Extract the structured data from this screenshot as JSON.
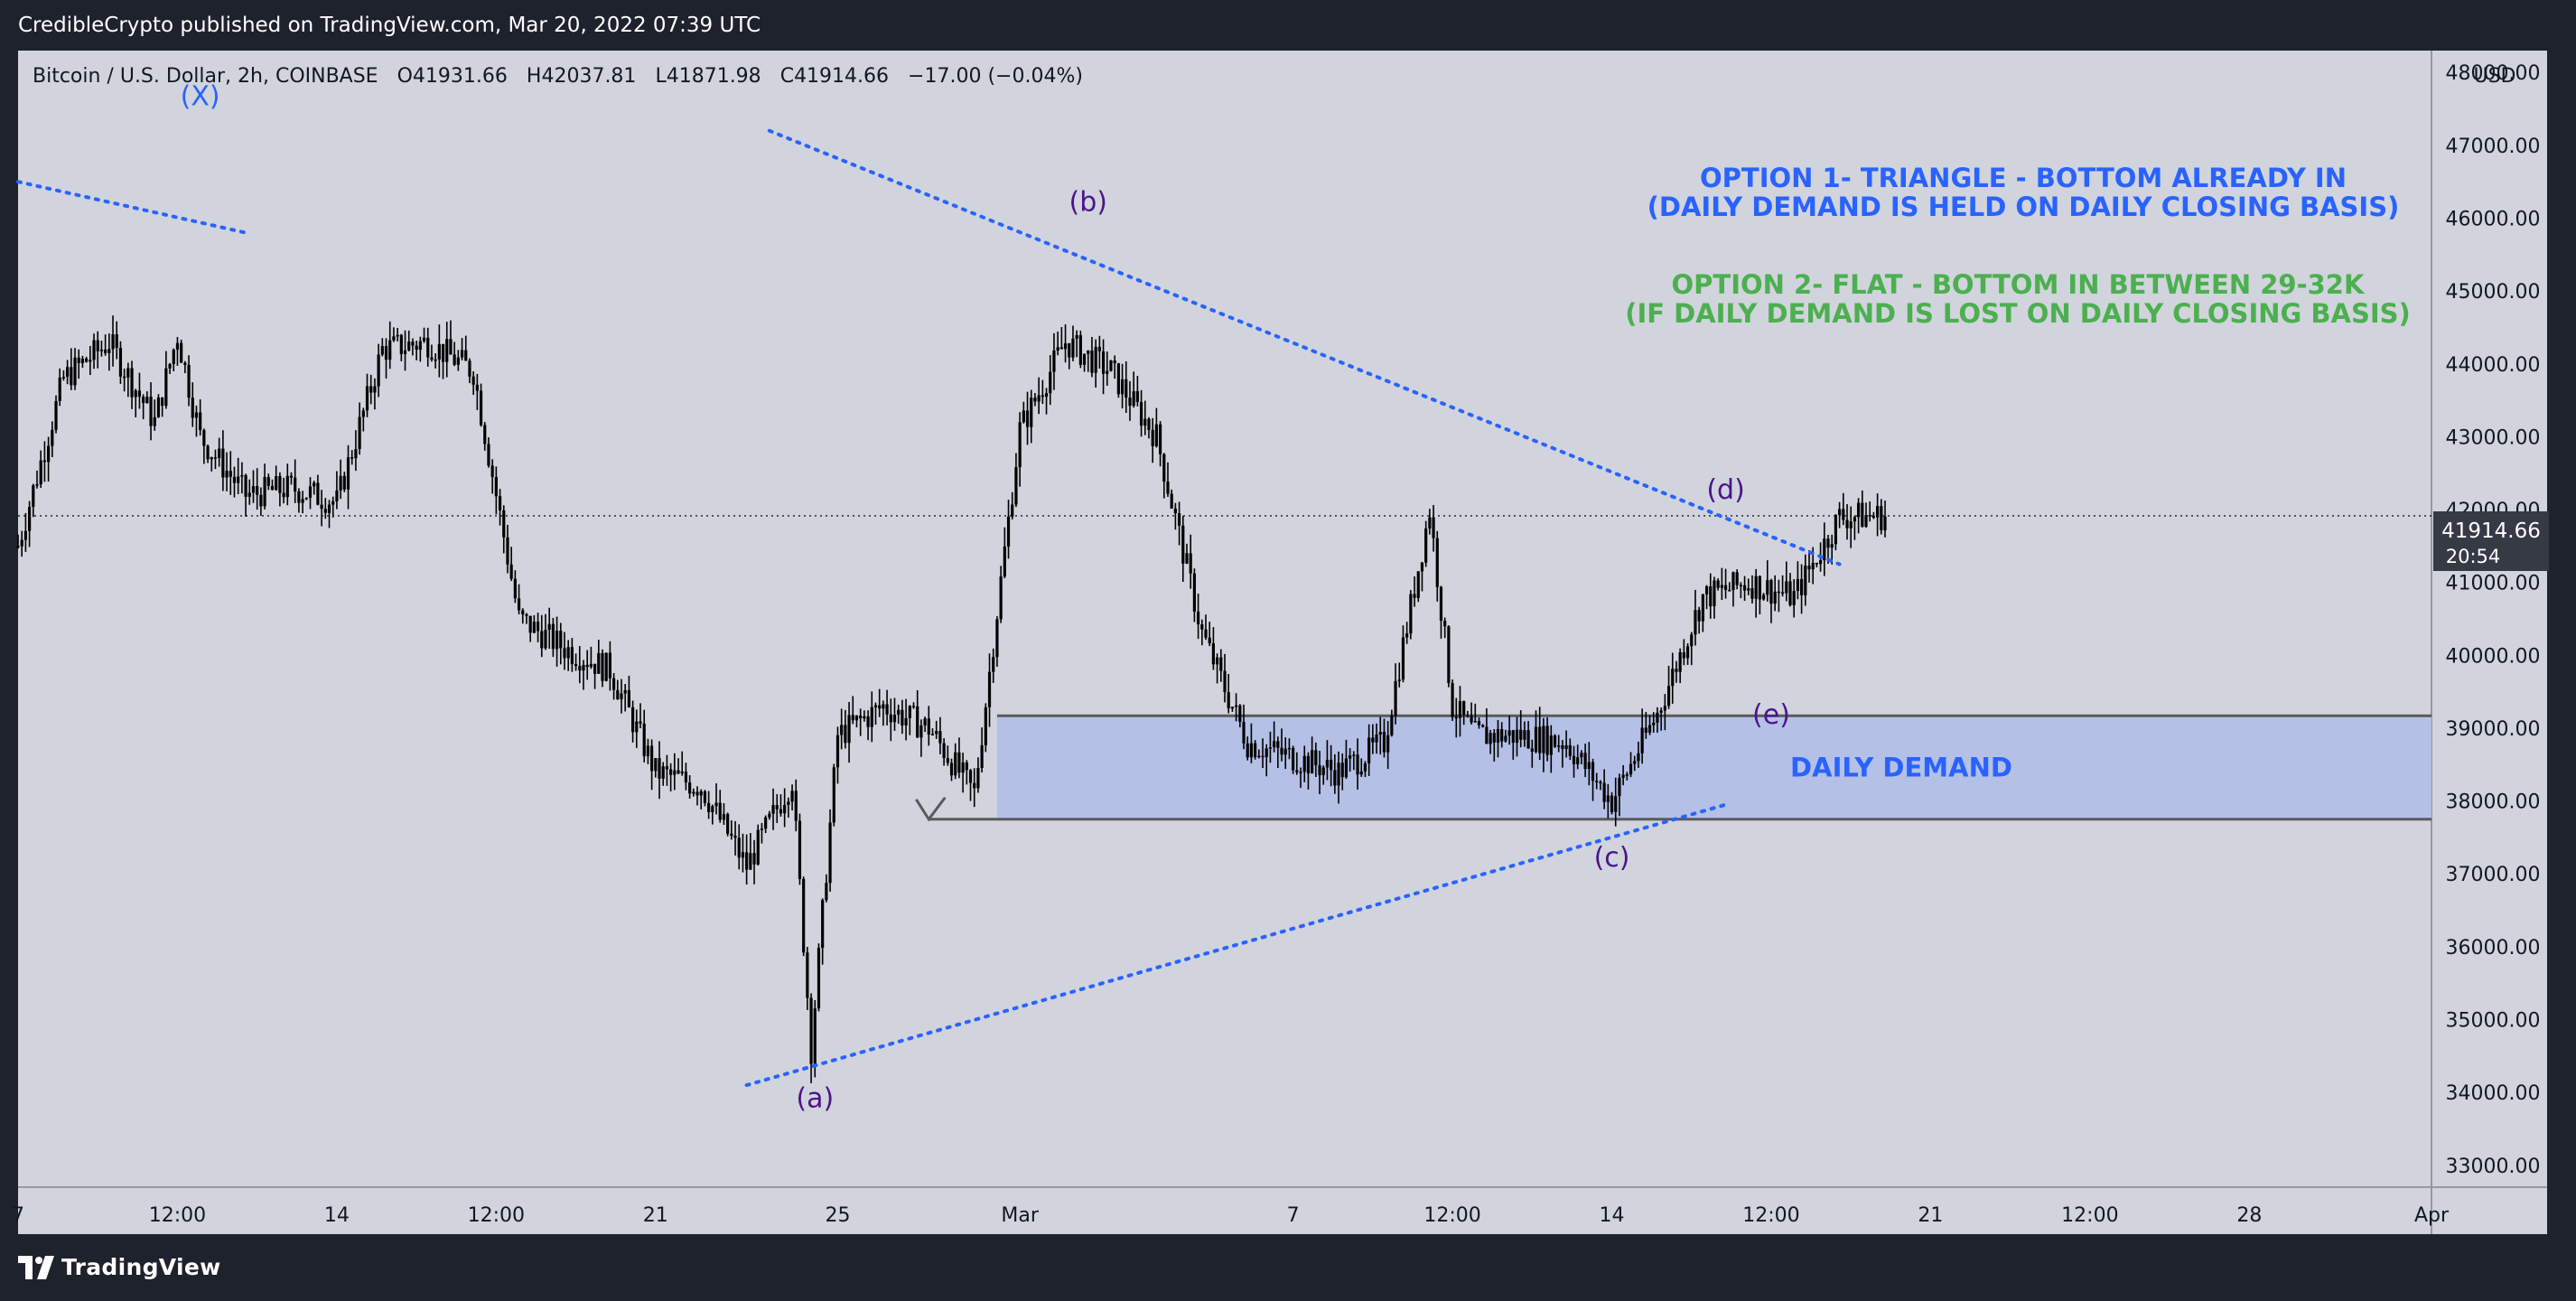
{
  "header": {
    "publisher": "CredibleCrypto published on TradingView.com, Mar 20, 2022 07:39 UTC"
  },
  "footer": {
    "brand": "TradingView",
    "logo_icon": "tradingview-logo-icon"
  },
  "theme": {
    "frame": "#1e222d",
    "plot_bg": "#d1d4dc",
    "candle": "#000000",
    "blue": "#2962ff",
    "green": "#4caf50",
    "purple": "#4a148c",
    "zone": "#b2bfe6",
    "zone_border": "#5a5a5a"
  },
  "symbol_bar": {
    "name": "Bitcoin / U.S. Dollar, 2h, COINBASE",
    "o_label": "O",
    "o_value": "41931.66",
    "h_label": "H",
    "h_value": "42037.81",
    "l_label": "L",
    "l_value": "41871.98",
    "c_label": "C",
    "c_value": "41914.66",
    "change": "−17.00 (−0.04%)"
  },
  "chart_data": {
    "type": "candlestick",
    "title": "Bitcoin / U.S. Dollar, 2h, COINBASE",
    "currency_label": "USD",
    "ylim": [
      32700,
      48300
    ],
    "xlim": [
      "2022-02-07",
      "2022-04-01"
    ],
    "y_ticks": [
      33000,
      34000,
      35000,
      36000,
      37000,
      38000,
      39000,
      40000,
      41000,
      42000,
      43000,
      44000,
      45000,
      46000,
      47000,
      48000
    ],
    "y_tick_labels": [
      "33000.00",
      "34000.00",
      "35000.00",
      "36000.00",
      "37000.00",
      "38000.00",
      "39000.00",
      "40000.00",
      "41000.00",
      "42000.00",
      "43000.00",
      "44000.00",
      "45000.00",
      "46000.00",
      "47000.00",
      "48000.00"
    ],
    "x_ticks": [
      {
        "label": "7",
        "date": "2022-02-07"
      },
      {
        "label": "12:00",
        "date": "2022-02-10T12:00"
      },
      {
        "label": "14",
        "date": "2022-02-14"
      },
      {
        "label": "12:00",
        "date": "2022-02-17T12:00"
      },
      {
        "label": "21",
        "date": "2022-02-21"
      },
      {
        "label": "25",
        "date": "2022-02-25"
      },
      {
        "label": "Mar",
        "date": "2022-03-01"
      },
      {
        "label": "7",
        "date": "2022-03-07"
      },
      {
        "label": "12:00",
        "date": "2022-03-10T12:00"
      },
      {
        "label": "14",
        "date": "2022-03-14"
      },
      {
        "label": "12:00",
        "date": "2022-03-17T12:00"
      },
      {
        "label": "21",
        "date": "2022-03-21"
      },
      {
        "label": "12:00",
        "date": "2022-03-24T12:00"
      },
      {
        "label": "28",
        "date": "2022-03-28"
      },
      {
        "label": "Apr",
        "date": "2022-04-01"
      }
    ],
    "price_path": [
      {
        "date": "2022-02-07",
        "close": 41500
      },
      {
        "date": "2022-02-08",
        "close": 43800
      },
      {
        "date": "2022-02-09",
        "close": 44300
      },
      {
        "date": "2022-02-10",
        "close": 43200
      },
      {
        "date": "2022-02-10T12:00",
        "close": 44400
      },
      {
        "date": "2022-02-11",
        "close": 43000
      },
      {
        "date": "2022-02-12",
        "close": 42200
      },
      {
        "date": "2022-02-13",
        "close": 42300
      },
      {
        "date": "2022-02-14",
        "close": 42100
      },
      {
        "date": "2022-02-15",
        "close": 44200
      },
      {
        "date": "2022-02-16",
        "close": 44300
      },
      {
        "date": "2022-02-17",
        "close": 43900
      },
      {
        "date": "2022-02-18",
        "close": 40500
      },
      {
        "date": "2022-02-19",
        "close": 40100
      },
      {
        "date": "2022-02-20",
        "close": 39800
      },
      {
        "date": "2022-02-21",
        "close": 38400
      },
      {
        "date": "2022-02-22",
        "close": 38200
      },
      {
        "date": "2022-02-23",
        "close": 37100
      },
      {
        "date": "2022-02-24",
        "close": 38300
      },
      {
        "date": "2022-02-24T10:00",
        "close": 34600
      },
      {
        "date": "2022-02-25",
        "close": 38900
      },
      {
        "date": "2022-02-26",
        "close": 39300
      },
      {
        "date": "2022-02-27",
        "close": 39000
      },
      {
        "date": "2022-02-28",
        "close": 38100
      },
      {
        "date": "2022-03-01",
        "close": 43100
      },
      {
        "date": "2022-03-02",
        "close": 44300
      },
      {
        "date": "2022-03-03",
        "close": 43900
      },
      {
        "date": "2022-03-04",
        "close": 43000
      },
      {
        "date": "2022-03-05",
        "close": 40300
      },
      {
        "date": "2022-03-06",
        "close": 38800
      },
      {
        "date": "2022-03-07",
        "close": 38600
      },
      {
        "date": "2022-03-08",
        "close": 38400
      },
      {
        "date": "2022-03-09",
        "close": 38800
      },
      {
        "date": "2022-03-10",
        "close": 42000
      },
      {
        "date": "2022-03-10T12:00",
        "close": 39300
      },
      {
        "date": "2022-03-11",
        "close": 38900
      },
      {
        "date": "2022-03-12",
        "close": 38900
      },
      {
        "date": "2022-03-13",
        "close": 38800
      },
      {
        "date": "2022-03-14",
        "close": 38000
      },
      {
        "date": "2022-03-15",
        "close": 39200
      },
      {
        "date": "2022-03-16",
        "close": 40800
      },
      {
        "date": "2022-03-17",
        "close": 41000
      },
      {
        "date": "2022-03-18",
        "close": 40800
      },
      {
        "date": "2022-03-19",
        "close": 41900
      },
      {
        "date": "2022-03-20",
        "close": 41914.66
      }
    ],
    "last_price": {
      "value": "41914.66",
      "timer": "20:54"
    },
    "zones": [
      {
        "name": "daily-demand",
        "label": "DAILY DEMAND",
        "from": 37750,
        "to": 39170,
        "start_date": "2022-02-28T12:00"
      }
    ],
    "trendlines": [
      {
        "name": "x-resistance",
        "from": {
          "date": "2022-02-07",
          "price": 46500
        },
        "to": {
          "date": "2022-02-12",
          "price": 45800
        }
      },
      {
        "name": "upper-triangle",
        "from": {
          "date": "2022-02-23T12:00",
          "price": 47200
        },
        "to": {
          "date": "2022-03-19",
          "price": 41250
        }
      },
      {
        "name": "lower-triangle",
        "from": {
          "date": "2022-02-23",
          "price": 34100
        },
        "to": {
          "date": "2022-03-16T12:00",
          "price": 37950
        }
      }
    ],
    "wave_labels": [
      {
        "text": "(X)",
        "date": "2022-02-11",
        "price": 47550,
        "color": "blue"
      },
      {
        "text": "(b)",
        "date": "2022-03-02T12:00",
        "price": 46100,
        "color": "purple"
      },
      {
        "text": "(a)",
        "date": "2022-02-24T12:00",
        "price": 33800,
        "color": "purple"
      },
      {
        "text": "(c)",
        "date": "2022-03-14",
        "price": 37100,
        "color": "purple"
      },
      {
        "text": "(d)",
        "date": "2022-03-16T12:00",
        "price": 42150,
        "color": "purple"
      },
      {
        "text": "(e)",
        "date": "2022-03-17T12:00",
        "price": 39060,
        "color": "purple"
      }
    ],
    "annotations": [
      {
        "lines": [
          "OPTION 1- TRIANGLE - BOTTOM ALREADY IN",
          "(DAILY DEMAND IS HELD ON DAILY CLOSING BASIS)"
        ],
        "color": "blue"
      },
      {
        "lines": [
          "OPTION 2- FLAT - BOTTOM IN BETWEEN 29-32K",
          "(IF DAILY DEMAND IS LOST ON DAILY CLOSING BASIS)"
        ],
        "color": "green"
      }
    ]
  }
}
